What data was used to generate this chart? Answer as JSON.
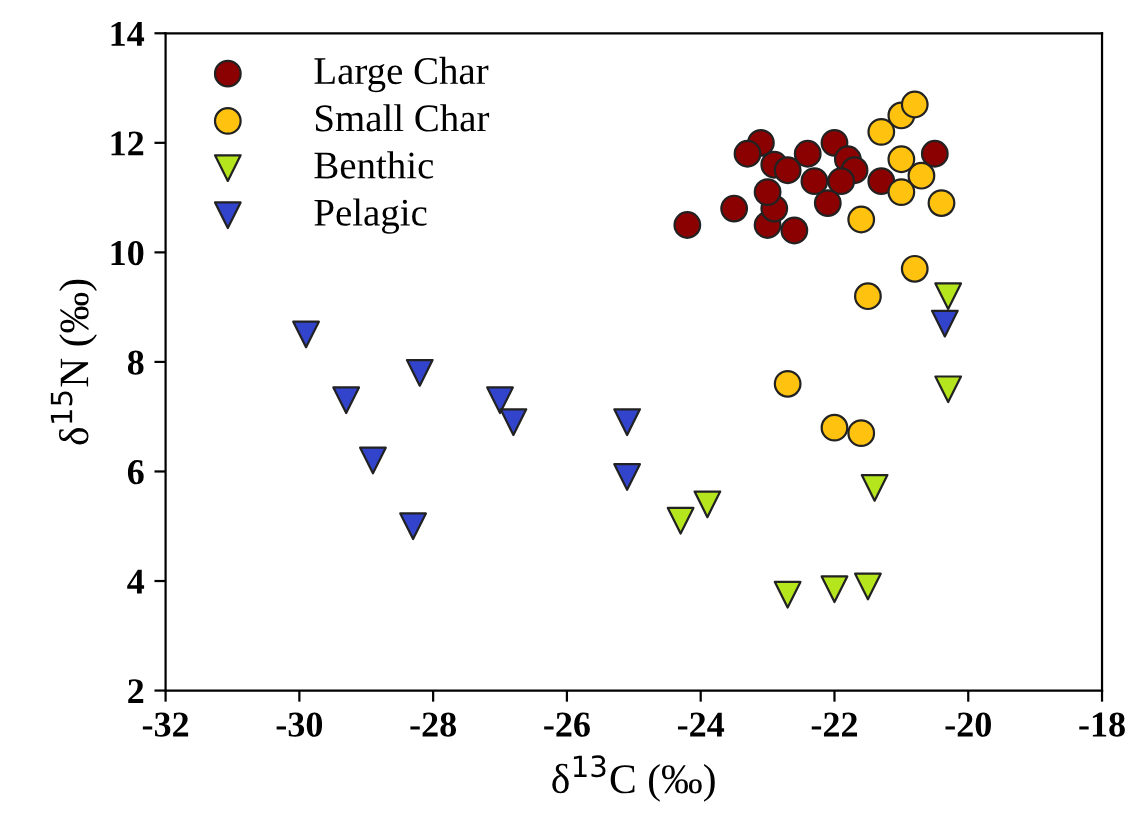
{
  "chart_data": {
    "type": "scatter",
    "xlabel": "δ$^{13}$C (‰)",
    "ylabel": "δ$^{15}$N (‰)",
    "xlim": [
      -32,
      -18
    ],
    "xticks": [
      -32,
      -30,
      -28,
      -26,
      -24,
      -22,
      -20,
      -18
    ],
    "ylim": [
      2,
      14
    ],
    "yticks": [
      2,
      4,
      6,
      8,
      10,
      12,
      14
    ],
    "grid": false,
    "legend": "top left",
    "series": [
      {
        "name": "Large Char",
        "color": "#8b0000",
        "marker": "circle",
        "x": [
          -24.2,
          -23.5,
          -23.0,
          -22.6,
          -22.9,
          -23.0,
          -22.9,
          -23.1,
          -23.3,
          -22.7,
          -22.0,
          -21.8,
          -21.7,
          -21.9,
          -22.1,
          -22.3,
          -21.3,
          -20.5,
          -22.4
        ],
        "values": [
          10.5,
          10.8,
          10.5,
          10.4,
          10.8,
          11.1,
          11.6,
          12.0,
          11.8,
          11.5,
          12.0,
          11.7,
          11.5,
          11.3,
          10.9,
          11.3,
          11.3,
          11.8,
          11.8
        ]
      },
      {
        "name": "Small Char",
        "color": "#ffc20e",
        "marker": "circle",
        "x": [
          -21.3,
          -20.7,
          -21.0,
          -20.4,
          -21.6,
          -20.8,
          -21.5,
          -22.7,
          -22.0,
          -21.6,
          -21.0,
          -20.8,
          -21.0
        ],
        "values": [
          12.2,
          11.4,
          11.1,
          10.9,
          10.6,
          9.7,
          9.2,
          7.6,
          6.8,
          6.7,
          12.5,
          12.7,
          11.7
        ]
      },
      {
        "name": "Benthic",
        "color": "#b5e61d",
        "marker": "triangle",
        "x": [
          -20.3,
          -20.3,
          -21.4,
          -22.7,
          -22.0,
          -21.5,
          -23.9,
          -24.3
        ],
        "values": [
          9.2,
          7.5,
          5.7,
          3.75,
          3.85,
          3.9,
          5.4,
          5.1
        ]
      },
      {
        "name": "Pelagic",
        "color": "#3344cc",
        "marker": "triangle",
        "x": [
          -29.9,
          -28.2,
          -29.3,
          -28.9,
          -28.3,
          -27.0,
          -26.8,
          -25.1,
          -25.1,
          -20.35
        ],
        "values": [
          8.5,
          7.8,
          7.3,
          6.2,
          5.0,
          7.3,
          6.9,
          6.9,
          5.9,
          8.7
        ]
      }
    ]
  }
}
